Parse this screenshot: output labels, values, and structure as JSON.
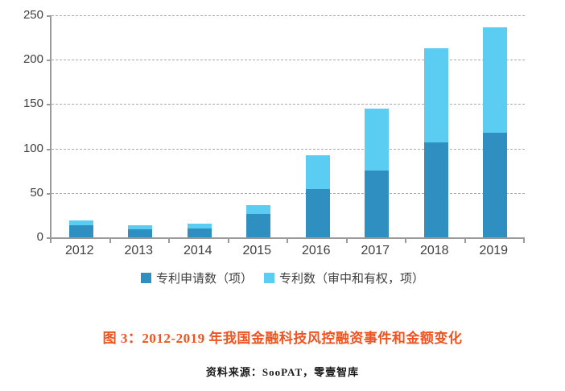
{
  "chart_data": {
    "type": "bar",
    "stacked": true,
    "categories": [
      "2012",
      "2013",
      "2014",
      "2015",
      "2016",
      "2017",
      "2018",
      "2019"
    ],
    "series": [
      {
        "name": "专利申请数（项）",
        "color": "#2E8FC0",
        "values": [
          14,
          9,
          10,
          26,
          54,
          75,
          107,
          118
        ]
      },
      {
        "name": "专利数（审中和有权，项）",
        "color": "#5BCDF2",
        "values": [
          5,
          5,
          5,
          10,
          38,
          70,
          106,
          118
        ]
      }
    ],
    "title": "",
    "xlabel": "",
    "ylabel": "",
    "ylim": [
      0,
      250
    ],
    "yticks": [
      0,
      50,
      100,
      150,
      200,
      250
    ],
    "grid": "horizontal-dashed",
    "legend_position": "bottom"
  },
  "caption": {
    "text": "图 3：2012-2019 年我国金融科技风控融资事件和金额变化",
    "color": "#F0531F"
  },
  "source": {
    "text": "资料来源：SooPAT，零壹智库"
  }
}
